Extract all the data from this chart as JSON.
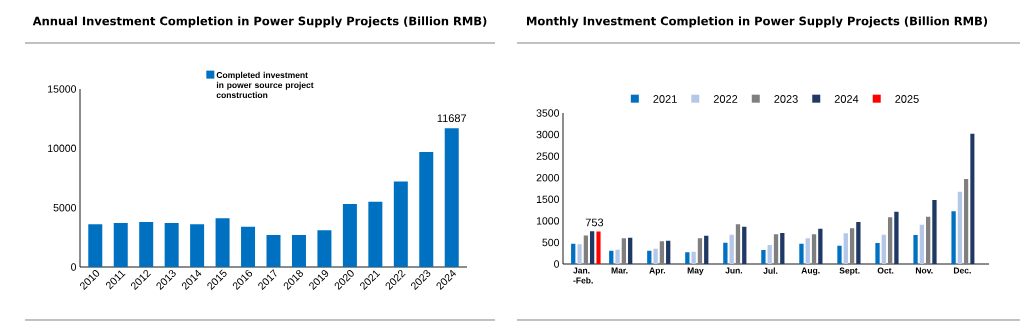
{
  "chart_data": [
    {
      "type": "bar",
      "title": "Annual Investment Completion in Power Supply Projects (Billion RMB)",
      "categories": [
        "2010",
        "2011",
        "2012",
        "2013",
        "2014",
        "2015",
        "2016",
        "2017",
        "2018",
        "2019",
        "2020",
        "2021",
        "2022",
        "2023",
        "2024"
      ],
      "series": [
        {
          "name": "Completed investment in power source project construction",
          "color": "#0070c0",
          "values": [
            3600,
            3700,
            3800,
            3700,
            3600,
            4100,
            3400,
            2700,
            2700,
            3100,
            5300,
            5500,
            7200,
            9700,
            11687
          ],
          "value_labels": [
            null,
            null,
            null,
            null,
            null,
            null,
            null,
            null,
            null,
            null,
            null,
            null,
            null,
            null,
            "11687"
          ]
        }
      ],
      "ylim": [
        0,
        15000
      ],
      "yticks": [
        0,
        5000,
        10000,
        15000
      ],
      "grid": false,
      "legend": "top"
    },
    {
      "type": "bar",
      "title": "Monthly Investment Completion in Power Supply Projects (Billion RMB)",
      "categories": [
        "Jan. -Feb.",
        "Mar.",
        "Apr.",
        "May",
        "Jun.",
        "Jul.",
        "Aug.",
        "Sept.",
        "Oct.",
        "Nov.",
        "Dec."
      ],
      "series": [
        {
          "name": "2021",
          "color": "#0070c0",
          "values": [
            471,
            309,
            309,
            270,
            495,
            325,
            471,
            425,
            487,
            672,
            1221
          ]
        },
        {
          "name": "2022",
          "color": "#b4c7e7",
          "values": [
            456,
            332,
            355,
            286,
            680,
            440,
            595,
            711,
            680,
            912,
            1677
          ]
        },
        {
          "name": "2023",
          "color": "#7f7f7f",
          "values": [
            660,
            595,
            525,
            595,
            920,
            688,
            688,
            827,
            1082,
            1097,
            1970
          ]
        },
        {
          "name": "2024",
          "color": "#1f3864",
          "values": [
            757,
            611,
            541,
            657,
            866,
            719,
            819,
            974,
            1213,
            1484,
            3022
          ]
        },
        {
          "name": "2025",
          "color": "#ff0000",
          "values": [
            753,
            null,
            null,
            null,
            null,
            null,
            null,
            null,
            null,
            null,
            null
          ],
          "value_labels": [
            "753",
            null,
            null,
            null,
            null,
            null,
            null,
            null,
            null,
            null,
            null
          ]
        }
      ],
      "ylim": [
        0,
        3500
      ],
      "yticks": [
        0,
        500,
        1000,
        1500,
        2000,
        2500,
        3000,
        3500
      ],
      "grid": false,
      "legend": "top"
    }
  ]
}
